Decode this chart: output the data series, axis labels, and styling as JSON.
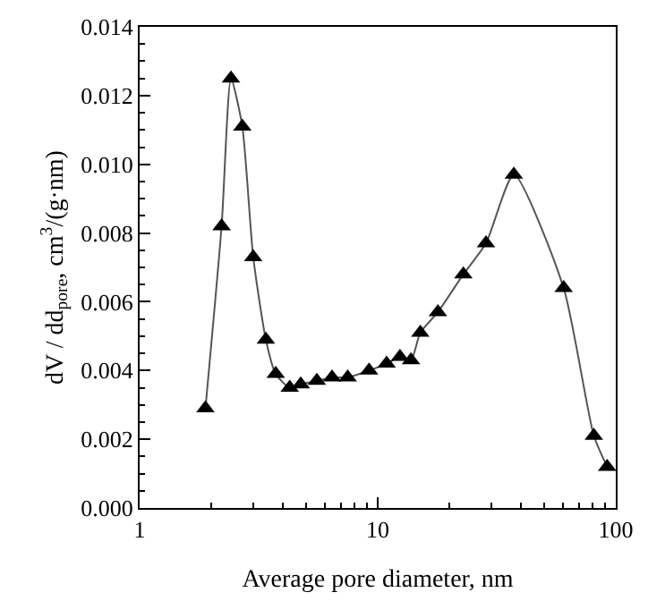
{
  "chart_data": {
    "type": "line",
    "xlabel": "Average pore diameter, nm",
    "ylabel": "dV / dd$_{pore}$, cm$^{3}$/(g·nm)",
    "x": [
      1.89,
      2.21,
      2.42,
      2.7,
      3.0,
      3.39,
      3.73,
      4.27,
      4.75,
      5.55,
      6.43,
      7.48,
      9.2,
      10.9,
      12.4,
      13.8,
      15.1,
      17.9,
      22.9,
      28.5,
      37.3,
      60.4,
      80.9,
      92
    ],
    "series": [
      {
        "color": "#000000",
        "values": [
          0.0029,
          0.0082,
          0.0125,
          0.0111,
          0.0073,
          0.0049,
          0.0039,
          0.0035,
          0.0036,
          0.0037,
          0.0038,
          0.0038,
          0.004,
          0.0042,
          0.0044,
          0.0043,
          0.0051,
          0.0057,
          0.0068,
          0.0077,
          0.0097,
          0.0064,
          0.0021,
          0.0012
        ]
      }
    ],
    "log": "x",
    "xlim": [
      1,
      100
    ],
    "xticks": [
      1,
      10,
      100
    ],
    "ylim": [
      0,
      0.014
    ],
    "yticks": [
      {
        "value": 0,
        "label": "0.000"
      },
      {
        "value": 0.002,
        "label": "0.002"
      },
      {
        "value": 0.004,
        "label": "0.004"
      },
      {
        "value": 0.006,
        "label": "0.006"
      },
      {
        "value": 0.008,
        "label": "0.008"
      },
      {
        "value": 0.01,
        "label": "0.010"
      },
      {
        "value": 0.012,
        "label": "0.012"
      },
      {
        "value": 0.014,
        "label": "0.014"
      }
    ],
    "marker": "triangle",
    "line_style": "solid"
  }
}
